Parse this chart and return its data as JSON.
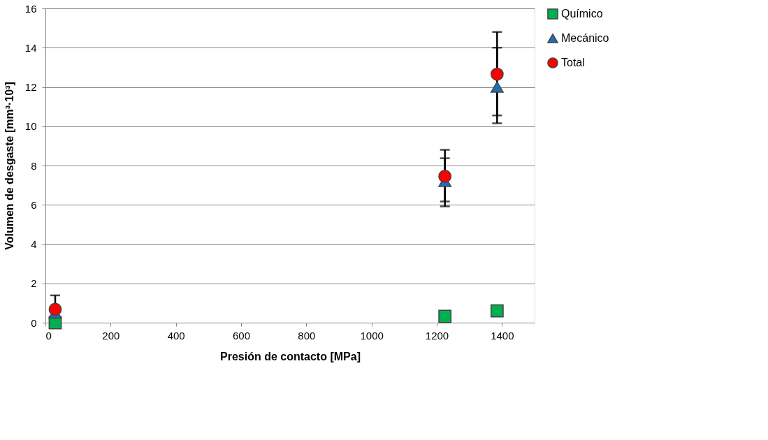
{
  "chart_data": {
    "type": "scatter",
    "xlabel": "Presión de contacto [MPa]",
    "ylabel": "Volumen de desgaste [mm³·10³]",
    "x": [
      30,
      1225,
      1385
    ],
    "series": [
      {
        "name": "Químico",
        "color": "#00b050",
        "marker": "square",
        "values": [
          0,
          0.32,
          0.6
        ]
      },
      {
        "name": "Mecánico",
        "color": "#1f6fb5",
        "marker": "triangle",
        "values": [
          0.5,
          7.2,
          12.0
        ],
        "errors": [
          null,
          [
            6.17,
            8.37
          ],
          [
            10.55,
            14.0
          ]
        ]
      },
      {
        "name": "Total",
        "color": "#ff0000",
        "marker": "circle",
        "values": [
          0.68,
          7.45,
          12.65
        ],
        "errors": [
          [
            0.68,
            1.39
          ],
          [
            5.92,
            8.8
          ],
          [
            10.15,
            14.8
          ]
        ]
      }
    ],
    "xlim": [
      0,
      1500
    ],
    "xticks": [
      0,
      200,
      400,
      600,
      800,
      1000,
      1200,
      1400
    ],
    "ylim": [
      0,
      16
    ],
    "yticks": [
      0,
      2,
      4,
      6,
      8,
      10,
      12,
      14,
      16
    ],
    "grid": "y",
    "legend": "right"
  }
}
